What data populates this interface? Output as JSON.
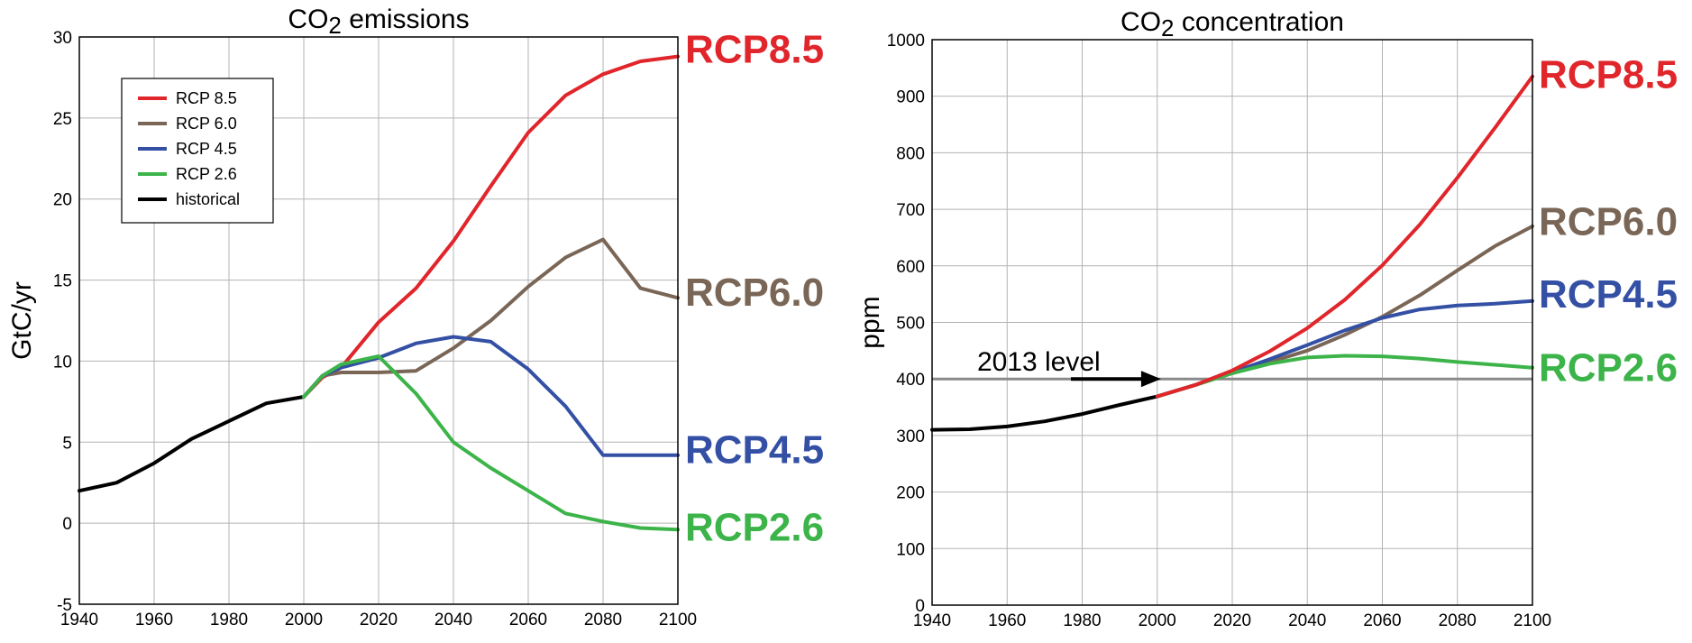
{
  "colors": {
    "rcp85": "#e0252b",
    "rcp60": "#7a6656",
    "rcp45": "#3450a4",
    "rcp26": "#3cb44a",
    "historical": "#000000",
    "level_line": "#8a8a8a"
  },
  "chart_data": [
    {
      "type": "line",
      "title_main": "CO",
      "title_sub": "2",
      "title_rest": " emissions",
      "ylabel": "GtC/yr",
      "xlabel": "",
      "xlim": [
        1940,
        2100
      ],
      "ylim": [
        -5,
        30
      ],
      "xticks": [
        1940,
        1960,
        1980,
        2000,
        2020,
        2040,
        2060,
        2080,
        2100
      ],
      "yticks": [
        -5,
        0,
        5,
        10,
        15,
        20,
        25,
        30
      ],
      "grid": true,
      "legend_position": "top-left",
      "legend": [
        {
          "key": "rcp85",
          "label": "RCP 8.5"
        },
        {
          "key": "rcp60",
          "label": "RCP 6.0"
        },
        {
          "key": "rcp45",
          "label": "RCP 4.5"
        },
        {
          "key": "rcp26",
          "label": "RCP 2.6"
        },
        {
          "key": "historical",
          "label": "historical"
        }
      ],
      "series": [
        {
          "key": "historical",
          "x": [
            1940,
            1950,
            1960,
            1970,
            1980,
            1990,
            2000
          ],
          "y": [
            2.0,
            2.5,
            3.7,
            5.2,
            6.3,
            7.4,
            7.8
          ]
        },
        {
          "key": "rcp85",
          "name": "RCP8.5",
          "x": [
            2000,
            2005,
            2010,
            2020,
            2030,
            2040,
            2050,
            2060,
            2070,
            2080,
            2090,
            2100
          ],
          "y": [
            7.8,
            9.0,
            9.6,
            12.4,
            14.5,
            17.4,
            20.8,
            24.1,
            26.4,
            27.7,
            28.5,
            28.8
          ]
        },
        {
          "key": "rcp60",
          "name": "RCP6.0",
          "x": [
            2000,
            2005,
            2010,
            2020,
            2030,
            2040,
            2050,
            2060,
            2070,
            2080,
            2090,
            2100
          ],
          "y": [
            7.8,
            9.1,
            9.3,
            9.3,
            9.4,
            10.8,
            12.5,
            14.6,
            16.4,
            17.5,
            14.5,
            13.9
          ]
        },
        {
          "key": "rcp45",
          "name": "RCP4.5",
          "x": [
            2000,
            2005,
            2010,
            2020,
            2030,
            2040,
            2050,
            2060,
            2070,
            2080,
            2090,
            2100
          ],
          "y": [
            7.8,
            9.1,
            9.6,
            10.2,
            11.1,
            11.5,
            11.2,
            9.5,
            7.2,
            4.2,
            4.2,
            4.2
          ]
        },
        {
          "key": "rcp26",
          "name": "RCP2.6",
          "x": [
            2000,
            2005,
            2010,
            2020,
            2030,
            2040,
            2050,
            2060,
            2070,
            2080,
            2090,
            2100
          ],
          "y": [
            7.8,
            9.1,
            9.8,
            10.3,
            8.0,
            5.0,
            3.4,
            2.0,
            0.6,
            0.1,
            -0.3,
            -0.4
          ]
        }
      ],
      "end_labels": [
        {
          "key": "rcp85",
          "text": "RCP8.5",
          "y": 29.3
        },
        {
          "key": "rcp60",
          "text": "RCP6.0",
          "y": 14.3
        },
        {
          "key": "rcp45",
          "text": "RCP4.5",
          "y": 4.6
        },
        {
          "key": "rcp26",
          "text": "RCP2.6",
          "y": -0.2
        }
      ]
    },
    {
      "type": "line",
      "title_main": "CO",
      "title_sub": "2",
      "title_rest": " concentration",
      "ylabel": "ppm",
      "xlabel": "",
      "xlim": [
        1940,
        2100
      ],
      "ylim": [
        0,
        1000
      ],
      "xticks": [
        1940,
        1960,
        1980,
        2000,
        2020,
        2040,
        2060,
        2080,
        2100
      ],
      "yticks": [
        0,
        100,
        200,
        300,
        400,
        500,
        600,
        700,
        800,
        900,
        1000
      ],
      "grid": true,
      "reference_line": {
        "y": 400,
        "label": "2013 level",
        "arrow_from_x": 1977,
        "arrow_to_x": 2001,
        "label_x": 1952,
        "label_y": 415
      },
      "series": [
        {
          "key": "historical",
          "x": [
            1940,
            1950,
            1960,
            1970,
            1980,
            1990,
            2000
          ],
          "y": [
            310,
            311,
            316,
            325,
            338,
            354,
            369
          ]
        },
        {
          "key": "rcp60",
          "name": "RCP6.0",
          "x": [
            2000,
            2010,
            2020,
            2030,
            2040,
            2050,
            2060,
            2070,
            2080,
            2090,
            2100
          ],
          "y": [
            369,
            389,
            410,
            430,
            450,
            478,
            510,
            548,
            592,
            635,
            670
          ]
        },
        {
          "key": "rcp45",
          "name": "RCP4.5",
          "x": [
            2000,
            2010,
            2020,
            2030,
            2040,
            2050,
            2060,
            2070,
            2080,
            2090,
            2100
          ],
          "y": [
            369,
            389,
            412,
            435,
            460,
            486,
            508,
            523,
            530,
            533,
            538
          ]
        },
        {
          "key": "rcp26",
          "name": "RCP2.6",
          "x": [
            2000,
            2010,
            2020,
            2030,
            2040,
            2050,
            2060,
            2070,
            2080,
            2090,
            2100
          ],
          "y": [
            369,
            389,
            410,
            427,
            438,
            441,
            440,
            436,
            430,
            425,
            420
          ]
        },
        {
          "key": "rcp85",
          "name": "RCP8.5",
          "x": [
            2000,
            2010,
            2020,
            2030,
            2040,
            2050,
            2060,
            2070,
            2080,
            2090,
            2100
          ],
          "y": [
            369,
            389,
            415,
            449,
            490,
            540,
            601,
            673,
            756,
            844,
            935
          ]
        }
      ],
      "end_labels": [
        {
          "key": "rcp85",
          "text": "RCP8.5",
          "y": 940
        },
        {
          "key": "rcp60",
          "text": "RCP6.0",
          "y": 680
        },
        {
          "key": "rcp45",
          "text": "RCP4.5",
          "y": 552
        },
        {
          "key": "rcp26",
          "text": "RCP2.6",
          "y": 422
        }
      ]
    }
  ]
}
